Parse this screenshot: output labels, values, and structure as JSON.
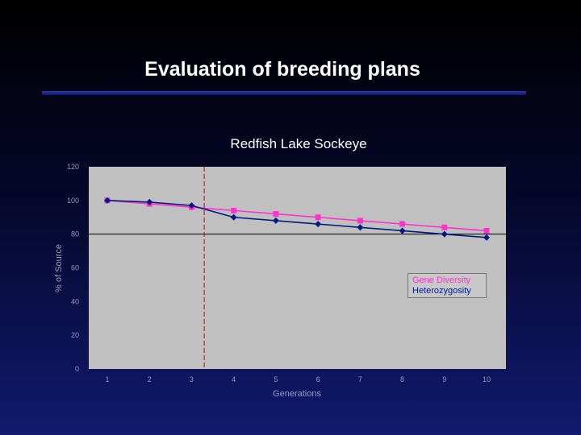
{
  "slide": {
    "title": "Evaluation of breeding plans"
  },
  "chart_data": {
    "type": "line",
    "title": "Redfish Lake Sockeye",
    "xlabel": "Generations",
    "ylabel": "% of Source",
    "x": [
      1,
      2,
      3,
      4,
      5,
      6,
      7,
      8,
      9,
      10
    ],
    "x_tick_labels": [
      "1",
      "2",
      "3",
      "4",
      "5",
      "6",
      "7",
      "8",
      "9",
      "10"
    ],
    "ylim": [
      0,
      120
    ],
    "y_ticks": [
      0,
      20,
      40,
      60,
      80,
      100,
      120
    ],
    "y_tick_labels": [
      "0",
      "20",
      "40",
      "60",
      "80",
      "100",
      "120"
    ],
    "reference_hline": 80,
    "reference_vline_x": 3.3,
    "grid": false,
    "legend_position": "right",
    "series": [
      {
        "name": "Gene Diversity",
        "color": "#ff33cc",
        "marker": "square",
        "values": [
          100,
          98,
          96,
          94,
          92,
          90,
          88,
          86,
          84,
          82
        ]
      },
      {
        "name": "Heterozygosity",
        "color": "#001a80",
        "marker": "diamond",
        "values": [
          100,
          99,
          97,
          90,
          88,
          86,
          84,
          82,
          80,
          78
        ]
      }
    ],
    "colors": {
      "plot_background": "#c0c0c0",
      "reference_vline": "#cc0000",
      "reference_hline": "#000000"
    }
  }
}
